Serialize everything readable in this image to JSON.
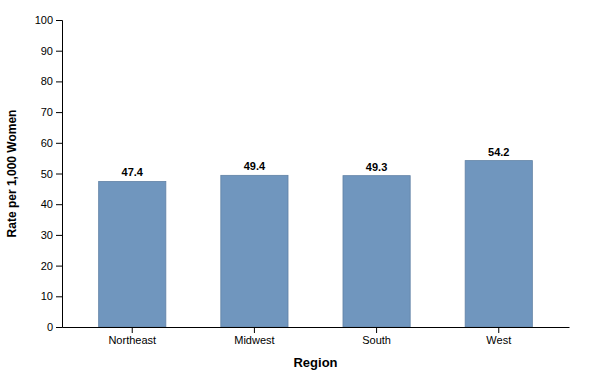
{
  "chart_data": {
    "type": "bar",
    "categories": [
      "Northeast",
      "Midwest",
      "South",
      "West"
    ],
    "values": [
      47.4,
      49.4,
      49.3,
      54.2
    ],
    "color": "#7096be",
    "xlabel": "Region",
    "ylabel": "Rate per 1,000 Women",
    "ylim": [
      0,
      100
    ],
    "yticks": [
      0,
      10,
      20,
      30,
      40,
      50,
      60,
      70,
      80,
      90,
      100
    ],
    "grid": false,
    "data_labels": true
  }
}
